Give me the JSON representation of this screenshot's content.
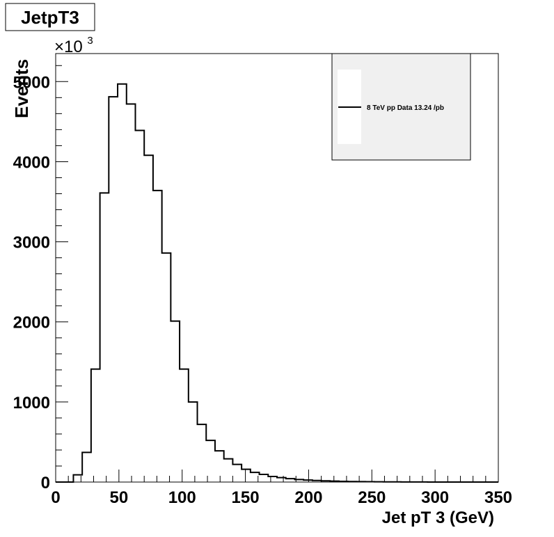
{
  "chart_data": {
    "type": "histogram",
    "title": "JetpT3",
    "xlabel": "Jet pT 3 (GeV)",
    "ylabel": "Events",
    "y_multiplier_label": "×10",
    "y_multiplier_exponent": "3",
    "xlim": [
      0,
      350
    ],
    "ylim": [
      0,
      5350
    ],
    "x_ticks": [
      0,
      50,
      100,
      150,
      200,
      250,
      300,
      350
    ],
    "x_tick_labels": [
      "0",
      "50",
      "100",
      "150",
      "200",
      "250",
      "300",
      "350"
    ],
    "y_ticks": [
      0,
      1000,
      2000,
      3000,
      4000,
      5000
    ],
    "y_tick_labels": [
      "0",
      "1000",
      "2000",
      "3000",
      "4000",
      "5000"
    ],
    "grid": false,
    "legend_position": "top-right",
    "series": [
      {
        "name": "8 TeV pp Data 13.24 /pb",
        "color": "#000000",
        "bin_edges": [
          0,
          7,
          14,
          21,
          28,
          35,
          42,
          49,
          56,
          63,
          70,
          77,
          84,
          91,
          98,
          105,
          112,
          119,
          126,
          133,
          140,
          147,
          154,
          161,
          168,
          175,
          182,
          189,
          196,
          203,
          210,
          217,
          224,
          231,
          238,
          245,
          252,
          259,
          266,
          273,
          280,
          287,
          294,
          301,
          308,
          315,
          322,
          329,
          336,
          343,
          350
        ],
        "values": [
          0,
          0,
          90,
          370,
          1410,
          3610,
          4810,
          4970,
          4720,
          4390,
          4080,
          3640,
          2860,
          2010,
          1410,
          1000,
          720,
          520,
          390,
          290,
          220,
          160,
          120,
          95,
          70,
          55,
          42,
          32,
          25,
          20,
          15,
          12,
          9,
          7,
          5,
          4,
          3,
          2,
          2,
          1,
          1,
          1,
          0,
          0,
          0,
          0,
          0,
          0,
          0,
          0
        ]
      }
    ]
  }
}
